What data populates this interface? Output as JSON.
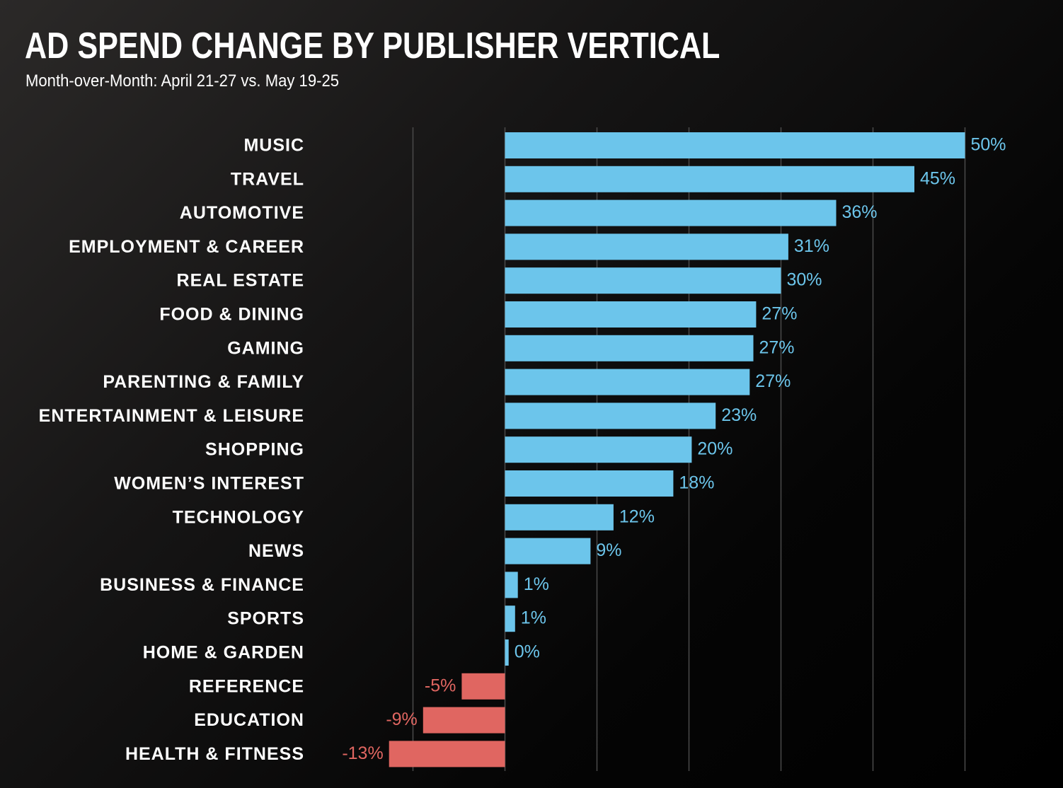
{
  "chart_title": "AD SPEND CHANGE BY PUBLISHER VERTICAL",
  "chart_subtitle": "Month-over-Month: April 21-27 vs. May 19-25",
  "colors": {
    "positive": "#6cc5eb",
    "negative": "#e06661",
    "background": "#0a0a0a",
    "gridline": "#4a4a4a",
    "text": "#ffffff"
  },
  "chart_data": {
    "type": "bar",
    "orientation": "horizontal",
    "title": "AD SPEND CHANGE BY PUBLISHER VERTICAL",
    "subtitle": "Month-over-Month: April 21-27 vs. May 19-25",
    "categories": [
      "MUSIC",
      "TRAVEL",
      "AUTOMOTIVE",
      "EMPLOYMENT & CAREER",
      "REAL ESTATE",
      "FOOD & DINING",
      "GAMING",
      "PARENTING & FAMILY",
      "ENTERTAINMENT & LEISURE",
      "SHOPPING",
      "WOMEN’S INTEREST",
      "TECHNOLOGY",
      "NEWS",
      "BUSINESS & FINANCE",
      "SPORTS",
      "HOME & GARDEN",
      "REFERENCE",
      "EDUCATION",
      "HEALTH & FITNESS"
    ],
    "values": [
      50,
      44.5,
      36,
      30.8,
      30,
      27.3,
      27,
      26.6,
      22.9,
      20.3,
      18.3,
      11.8,
      9.3,
      1.4,
      1.1,
      0.4,
      -4.7,
      -8.9,
      -12.6
    ],
    "value_labels": [
      "50%",
      "45%",
      "36%",
      "31%",
      "30%",
      "27%",
      "27%",
      "27%",
      "23%",
      "20%",
      "18%",
      "12%",
      "9%",
      "1%",
      "1%",
      "0%",
      "-5%",
      "-9%",
      "-13%"
    ],
    "xlim": [
      -20,
      60
    ],
    "grid": true,
    "gridline_values": [
      -10,
      0,
      10,
      20,
      30,
      40,
      50
    ],
    "xlabel": "",
    "ylabel": ""
  }
}
